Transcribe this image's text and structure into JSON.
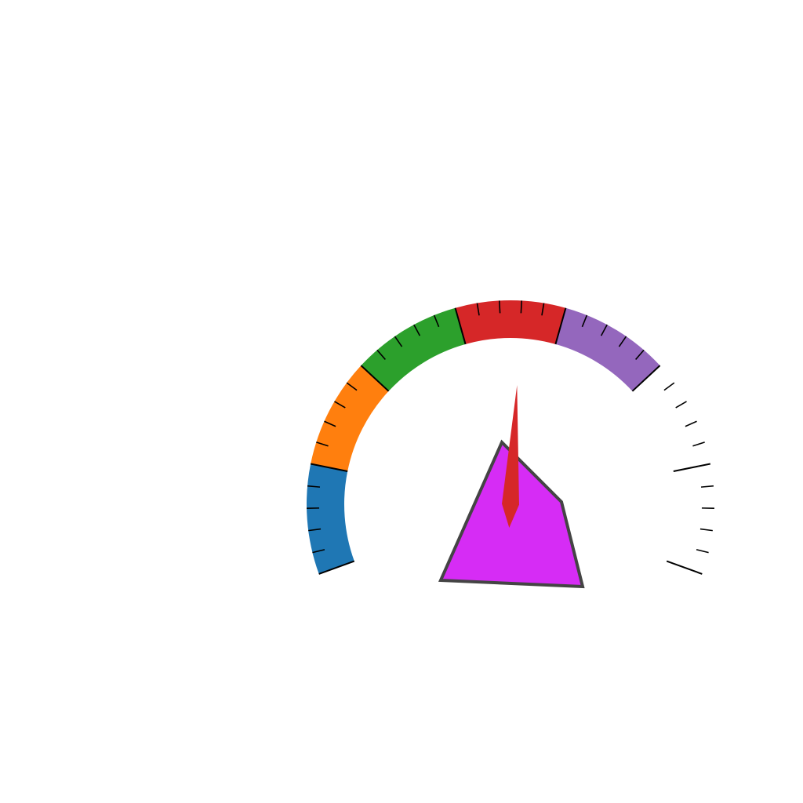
{
  "gauge": {
    "scale_min": 0,
    "scale_max": 70,
    "needle_value": 36,
    "bands": [
      {
        "name": "band-blue",
        "from": 0,
        "to": 10,
        "color": "#1f77b4"
      },
      {
        "name": "band-orange",
        "from": 10,
        "to": 20,
        "color": "#ff7f0e"
      },
      {
        "name": "band-green",
        "from": 20,
        "to": 30,
        "color": "#2ca02c"
      },
      {
        "name": "band-red",
        "from": 30,
        "to": 40,
        "color": "#d62728"
      },
      {
        "name": "band-purple",
        "from": 40,
        "to": 50,
        "color": "#9467bd"
      }
    ],
    "major_tick_step": 10,
    "minor_tick_step": 2,
    "needle_color": "#d62728",
    "pentagon_color": "#d62cf5",
    "pentagon_stroke": "#444444"
  }
}
